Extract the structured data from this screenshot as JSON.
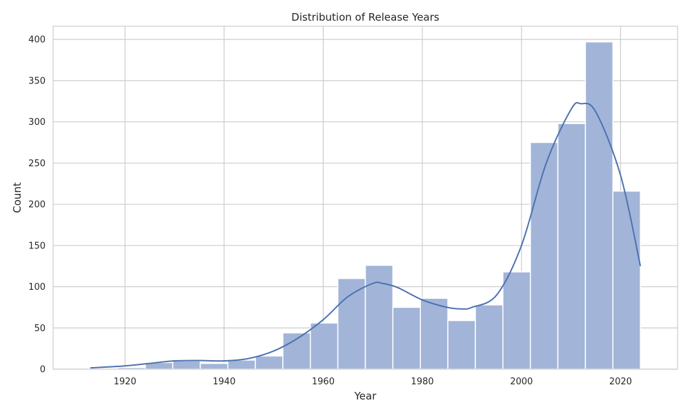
{
  "chart_data": {
    "type": "bar",
    "title": "Distribution of Release Years",
    "xlabel": "Year",
    "ylabel": "Count",
    "xlim": [
      1905.5,
      2031.5
    ],
    "ylim": [
      0,
      416
    ],
    "x_ticks": [
      1920,
      1940,
      1960,
      1980,
      2000,
      2020
    ],
    "y_ticks": [
      0,
      50,
      100,
      150,
      200,
      250,
      300,
      350,
      400
    ],
    "grid": true,
    "bin_start": 1913,
    "bin_width": 5.55,
    "bins": [
      {
        "x0": 1913,
        "x1": 1918.55,
        "count": 1
      },
      {
        "x0": 1918.55,
        "x1": 1924.1,
        "count": 2
      },
      {
        "x0": 1924.1,
        "x1": 1929.65,
        "count": 8
      },
      {
        "x0": 1929.65,
        "x1": 1935.2,
        "count": 10
      },
      {
        "x0": 1935.2,
        "x1": 1940.75,
        "count": 7
      },
      {
        "x0": 1940.75,
        "x1": 1946.3,
        "count": 11
      },
      {
        "x0": 1946.3,
        "x1": 1951.85,
        "count": 16
      },
      {
        "x0": 1951.85,
        "x1": 1957.4,
        "count": 44
      },
      {
        "x0": 1957.4,
        "x1": 1962.95,
        "count": 56
      },
      {
        "x0": 1962.95,
        "x1": 1968.5,
        "count": 110
      },
      {
        "x0": 1968.5,
        "x1": 1974.05,
        "count": 126
      },
      {
        "x0": 1974.05,
        "x1": 1979.6,
        "count": 75
      },
      {
        "x0": 1979.6,
        "x1": 1985.15,
        "count": 86
      },
      {
        "x0": 1985.15,
        "x1": 1990.7,
        "count": 59
      },
      {
        "x0": 1990.7,
        "x1": 1996.25,
        "count": 78
      },
      {
        "x0": 1996.25,
        "x1": 2001.8,
        "count": 118
      },
      {
        "x0": 2001.8,
        "x1": 2007.35,
        "count": 275
      },
      {
        "x0": 2007.35,
        "x1": 2012.9,
        "count": 298
      },
      {
        "x0": 2012.9,
        "x1": 2018.45,
        "count": 397
      },
      {
        "x0": 2018.45,
        "x1": 2024,
        "count": 216
      }
    ],
    "kde": {
      "x": [
        1913,
        1920,
        1925,
        1930,
        1935,
        1940,
        1945,
        1950,
        1955,
        1960,
        1965,
        1970,
        1972,
        1975,
        1980,
        1985,
        1988,
        1990,
        1995,
        2000,
        2005,
        2010,
        2012,
        2015,
        2020,
        2024
      ],
      "y": [
        1.5,
        4,
        7,
        10,
        10.5,
        10,
        13,
        22,
        38,
        60,
        88,
        104,
        104,
        99,
        84,
        75,
        73,
        75,
        90,
        150,
        250,
        315,
        322,
        312,
        235,
        125
      ]
    },
    "colors": {
      "bar_fill": "#a2b5d8",
      "bar_edge": "#ffffff",
      "kde_line": "#4c72b0",
      "grid": "#cccccc",
      "axes_edge": "#cccccc",
      "text": "#262626"
    }
  }
}
